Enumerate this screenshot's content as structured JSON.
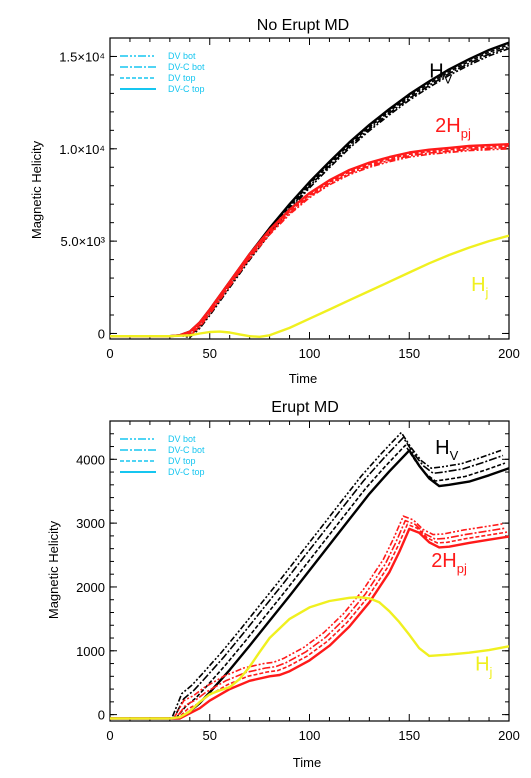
{
  "colors": {
    "hv": "#000000",
    "hpj": "#ff1a1a",
    "hj": "#f0f020",
    "legend": "#16c6f0"
  },
  "legend_labels": [
    "DV bot",
    "DV-C bot",
    "DV top",
    "DV-C top"
  ],
  "chart_data": [
    {
      "type": "line",
      "title": "No Erupt MD",
      "xlabel": "Time",
      "ylabel": "Magnetic Helicity",
      "xlim": [
        0,
        200
      ],
      "ylim": [
        -300,
        16000
      ],
      "xticks": [
        0,
        50,
        100,
        150,
        200
      ],
      "xtick_labels": [
        "0",
        "50",
        "100",
        "150",
        "200"
      ],
      "yticks": [
        0,
        5000,
        10000,
        15000
      ],
      "ytick_labels": [
        "0",
        "5.0×10³",
        "1.0×10⁴",
        "1.5×10⁴"
      ],
      "legend": [
        "DV bot",
        "DV-C bot",
        "DV top",
        "DV-C top"
      ],
      "legend_position": "top-left",
      "curve_labels": [
        {
          "main": "H",
          "sub": "V",
          "x": 160,
          "y": 13850,
          "color_key": "hv"
        },
        {
          "main": "2H",
          "sub": "pj",
          "x": 163,
          "y": 10900,
          "color_key": "hpj"
        },
        {
          "main": "H",
          "sub": "j",
          "x": 181,
          "y": 2300,
          "color_key": "hj"
        }
      ],
      "series": [
        {
          "name": "Hv",
          "color_key": "hv",
          "x": [
            0,
            30,
            35,
            40,
            45,
            50,
            60,
            70,
            80,
            90,
            100,
            110,
            120,
            130,
            140,
            150,
            160,
            170,
            180,
            190,
            200
          ],
          "y": [
            -150,
            -150,
            -100,
            100,
            600,
            1300,
            2800,
            4300,
            5700,
            7000,
            8200,
            9300,
            10350,
            11300,
            12150,
            12950,
            13650,
            14300,
            14850,
            15350,
            15750
          ],
          "variants": [
            {
              "dx": 0,
              "dy": 0,
              "dash": ""
            },
            {
              "dx": 0,
              "dy": -120,
              "dash": "4,2"
            },
            {
              "dx": 0,
              "dy": -220,
              "dash": "8,2,2,2"
            },
            {
              "dx": 0,
              "dy": -320,
              "dash": "6,2,2,2,2,2"
            }
          ]
        },
        {
          "name": "2Hpj",
          "color_key": "hpj",
          "x": [
            0,
            30,
            35,
            40,
            45,
            50,
            60,
            70,
            80,
            90,
            100,
            110,
            120,
            130,
            140,
            150,
            160,
            170,
            180,
            190,
            200
          ],
          "y": [
            -150,
            -150,
            -100,
            100,
            600,
            1300,
            2800,
            4300,
            5600,
            6700,
            7600,
            8300,
            8850,
            9250,
            9550,
            9800,
            9950,
            10050,
            10150,
            10200,
            10250
          ],
          "variants": [
            {
              "dx": 0,
              "dy": 0,
              "dash": ""
            },
            {
              "dx": 0,
              "dy": -100,
              "dash": "4,2"
            },
            {
              "dx": 0,
              "dy": -180,
              "dash": "8,2,2,2"
            },
            {
              "dx": 0,
              "dy": -250,
              "dash": "6,2,2,2,2,2"
            }
          ]
        },
        {
          "name": "Hj",
          "color_key": "hj",
          "x": [
            0,
            30,
            40,
            45,
            50,
            55,
            60,
            65,
            70,
            75,
            80,
            90,
            100,
            110,
            120,
            130,
            140,
            150,
            160,
            170,
            180,
            190,
            200
          ],
          "y": [
            -150,
            -150,
            -100,
            0,
            80,
            100,
            50,
            -50,
            -150,
            -180,
            -100,
            300,
            800,
            1300,
            1800,
            2300,
            2800,
            3300,
            3800,
            4250,
            4650,
            5000,
            5300
          ],
          "variants": [
            {
              "dx": 0,
              "dy": 0,
              "dash": ""
            }
          ]
        }
      ]
    },
    {
      "type": "line",
      "title": "Erupt MD",
      "xlabel": "Time",
      "ylabel": "Magnetic Helicity",
      "xlim": [
        0,
        200
      ],
      "ylim": [
        -100,
        4600
      ],
      "xticks": [
        0,
        50,
        100,
        150,
        200
      ],
      "xtick_labels": [
        "0",
        "50",
        "100",
        "150",
        "200"
      ],
      "yticks": [
        0,
        1000,
        2000,
        3000,
        4000
      ],
      "ytick_labels": [
        "0",
        "1000",
        "2000",
        "3000",
        "4000"
      ],
      "legend": [
        "DV bot",
        "DV-C bot",
        "DV top",
        "DV-C top"
      ],
      "legend_position": "top-left",
      "curve_labels": [
        {
          "main": "H",
          "sub": "V",
          "x": 163,
          "y": 4080,
          "color_key": "hv"
        },
        {
          "main": "2H",
          "sub": "pj",
          "x": 161,
          "y": 2310,
          "color_key": "hpj"
        },
        {
          "main": "H",
          "sub": "j",
          "x": 183,
          "y": 690,
          "color_key": "hj"
        }
      ],
      "series": [
        {
          "name": "Hv",
          "color_key": "hv",
          "x": [
            0,
            30,
            35,
            40,
            45,
            50,
            60,
            70,
            80,
            90,
            100,
            110,
            120,
            130,
            140,
            150,
            155,
            160,
            165,
            170,
            180,
            190,
            200
          ],
          "y": [
            -60,
            -60,
            -60,
            50,
            180,
            350,
            700,
            1080,
            1470,
            1860,
            2260,
            2660,
            3060,
            3460,
            3810,
            4140,
            3900,
            3700,
            3580,
            3600,
            3650,
            3750,
            3860
          ],
          "variants": [
            {
              "dx": 0,
              "dy": 0,
              "dash": ""
            },
            {
              "dx": -2,
              "dy": 80,
              "dash": "4,2"
            },
            {
              "dx": -3,
              "dy": 200,
              "dash": "8,2,2,2"
            },
            {
              "dx": -4,
              "dy": 280,
              "dash": "6,2,2,2,2,2"
            }
          ]
        },
        {
          "name": "2Hpj",
          "color_key": "hpj",
          "x": [
            0,
            30,
            35,
            40,
            45,
            50,
            60,
            70,
            80,
            85,
            90,
            100,
            110,
            120,
            130,
            140,
            145,
            150,
            155,
            160,
            165,
            170,
            180,
            190,
            200
          ],
          "y": [
            -60,
            -60,
            -60,
            20,
            100,
            220,
            400,
            530,
            600,
            620,
            680,
            850,
            1080,
            1380,
            1760,
            2230,
            2550,
            2910,
            2850,
            2700,
            2620,
            2630,
            2690,
            2740,
            2790
          ],
          "variants": [
            {
              "dx": 0,
              "dy": 0,
              "dash": ""
            },
            {
              "dx": -1,
              "dy": 70,
              "dash": "4,2"
            },
            {
              "dx": -2,
              "dy": 130,
              "dash": "8,2,2,2"
            },
            {
              "dx": -3,
              "dy": 200,
              "dash": "6,2,2,2,2,2"
            }
          ]
        },
        {
          "name": "Hj",
          "color_key": "hj",
          "x": [
            0,
            30,
            35,
            40,
            45,
            50,
            55,
            60,
            65,
            70,
            75,
            80,
            90,
            100,
            110,
            120,
            125,
            130,
            135,
            140,
            145,
            150,
            155,
            160,
            170,
            180,
            190,
            200
          ],
          "y": [
            -60,
            -60,
            -40,
            50,
            200,
            320,
            380,
            430,
            560,
            750,
            980,
            1200,
            1500,
            1680,
            1780,
            1830,
            1840,
            1820,
            1760,
            1620,
            1450,
            1250,
            1040,
            920,
            940,
            970,
            1010,
            1070
          ],
          "variants": [
            {
              "dx": 0,
              "dy": 0,
              "dash": ""
            }
          ]
        }
      ]
    }
  ]
}
